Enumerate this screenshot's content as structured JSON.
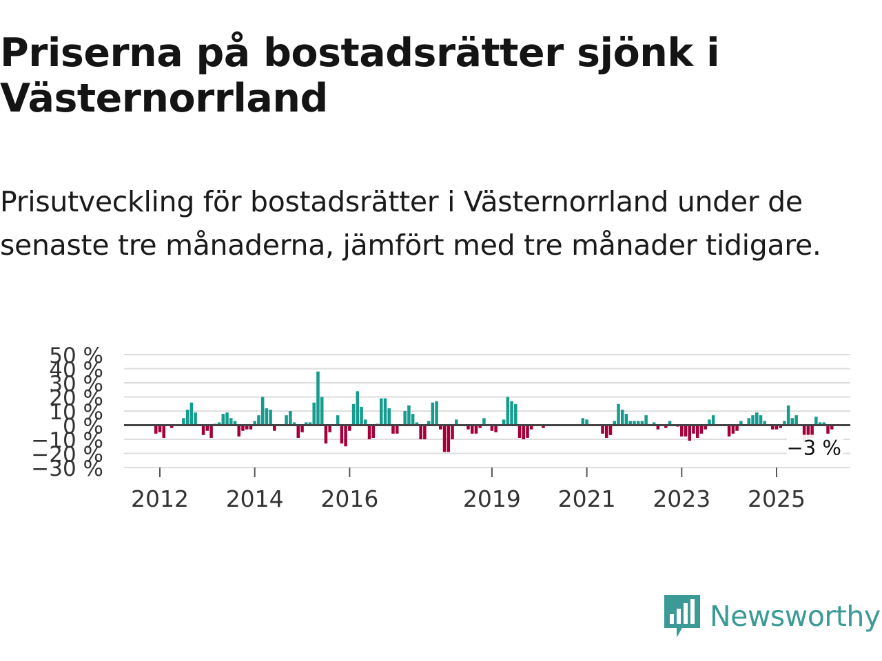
{
  "header": {
    "title": "Priserna på bostadsrätter sjönk i Västernorrland",
    "subtitle": "Prisutveckling för bostadsrätter i Västernorrland under de senaste tre månaderna, jämfört med tre månader tidigare."
  },
  "chart_data": {
    "type": "bar",
    "title": "Priserna på bostadsrätter sjönk i Västernorrland",
    "ylabel": "",
    "xlabel": "",
    "ylim": [
      -30,
      50
    ],
    "yticks": [
      50,
      40,
      30,
      20,
      10,
      0,
      -10,
      -20,
      -30
    ],
    "ytick_labels": [
      "50 %",
      "40 %",
      "30 %",
      "20 %",
      "10 %",
      "0 %",
      "−10 %",
      "−20 %",
      "−30 %"
    ],
    "xticks": [
      2012,
      2014,
      2016,
      2019,
      2021,
      2023,
      2025
    ],
    "xtick_labels": [
      "2012",
      "2014",
      "2016",
      "2019",
      "2021",
      "2023",
      "2025"
    ],
    "x_start": 2011.25,
    "x_step": 0.08333,
    "values": [
      0,
      0,
      0,
      0,
      0,
      0,
      0,
      0,
      -6,
      -5,
      -9,
      0,
      -2,
      0,
      0,
      5,
      11,
      16,
      9,
      0,
      -7,
      -4,
      -9,
      1,
      2,
      8,
      9,
      5,
      3,
      -8,
      -4,
      -3,
      -3,
      3,
      7,
      20,
      12,
      11,
      -4,
      0,
      0,
      7,
      10,
      2,
      -9,
      -5,
      2,
      2,
      16,
      38,
      20,
      -13,
      -5,
      0,
      7,
      -13,
      -15,
      -4,
      15,
      24,
      13,
      4,
      -10,
      -9,
      1,
      19,
      19,
      12,
      -6,
      -6,
      0,
      10,
      14,
      8,
      2,
      -10,
      -10,
      3,
      16,
      17,
      -3,
      -19,
      -19,
      -10,
      4,
      0,
      0,
      -3,
      -6,
      -6,
      -2,
      5,
      0,
      -4,
      -5,
      0,
      4,
      20,
      17,
      15,
      -9,
      -10,
      -9,
      -3,
      0,
      0,
      -2,
      0,
      0,
      0,
      0,
      0,
      0,
      0,
      0,
      0,
      5,
      4,
      0,
      0,
      0,
      -6,
      -9,
      -7,
      3,
      15,
      11,
      8,
      3,
      3,
      3,
      3,
      7,
      0,
      2,
      -3,
      0,
      -2,
      3,
      0,
      -1,
      -8,
      -8,
      -11,
      -6,
      -9,
      -6,
      -3,
      4,
      7,
      0,
      0,
      0,
      -8,
      -6,
      -4,
      3,
      0,
      5,
      7,
      9,
      7,
      3,
      0,
      -3,
      -3,
      -2,
      3,
      14,
      5,
      7,
      0,
      -12,
      -9,
      -9,
      6,
      2,
      2,
      -6,
      -3
    ],
    "last_value_label": "−3 %",
    "colors": {
      "positive": "#169c8f",
      "negative": "#a3003b",
      "gridline": "#dddddd",
      "zeroline": "#444444",
      "axis_text": "#333333"
    }
  },
  "brand": {
    "name": "Newsworthy",
    "icon": "newsworthy-logo-icon",
    "color": "#3b9a96"
  }
}
